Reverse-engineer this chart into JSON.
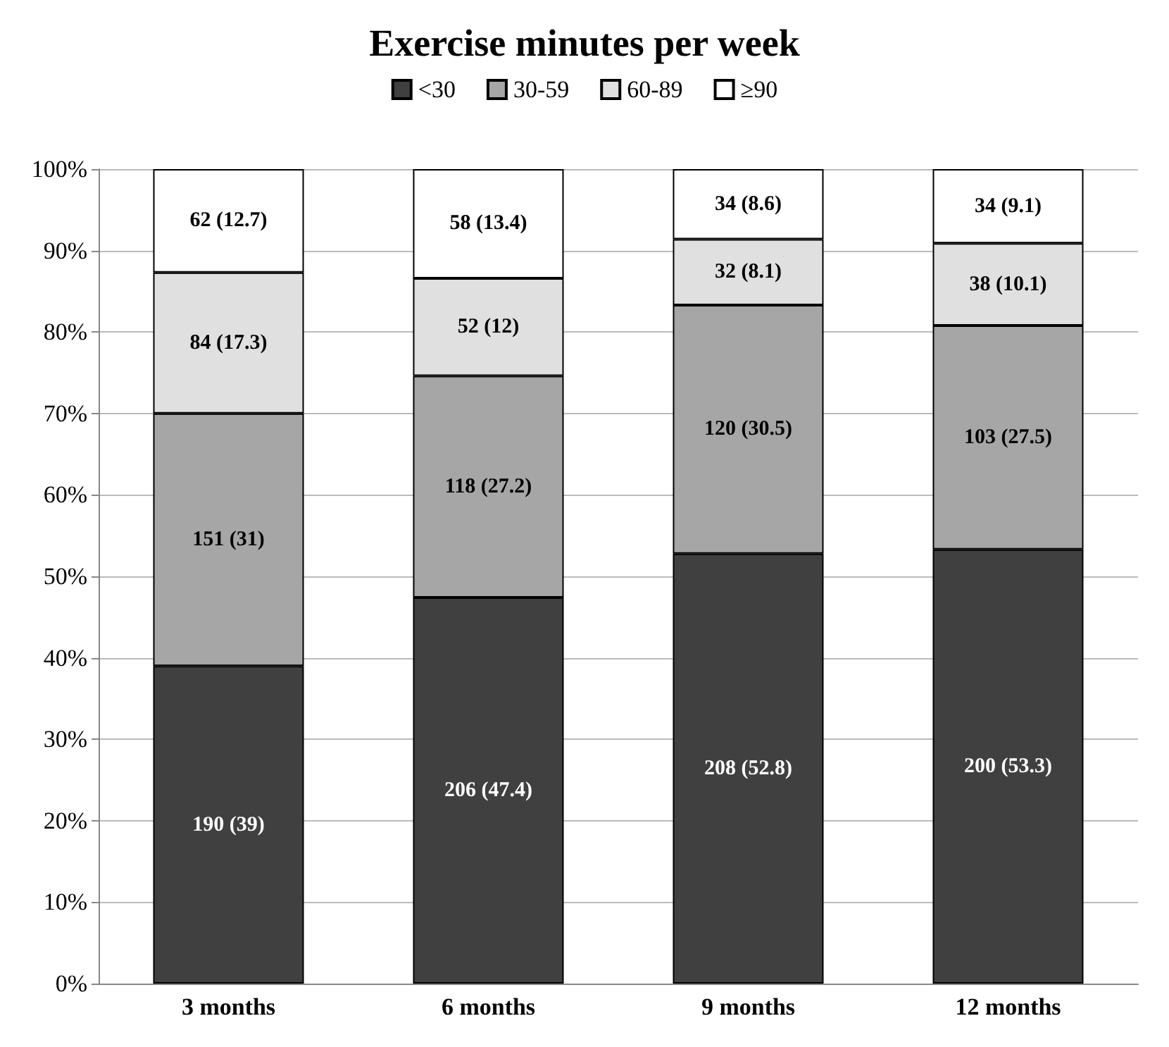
{
  "chart_data": {
    "type": "bar",
    "title": "Exercise minutes per week",
    "stacked": true,
    "categories": [
      "3 months",
      "6 months",
      "9 months",
      "12 months"
    ],
    "series": [
      {
        "name": "<30",
        "color": "#404040",
        "values": [
          39,
          47.4,
          52.8,
          53.3
        ],
        "value_labels": [
          "190 (39)",
          "206 (47.4)",
          "208 (52.8)",
          "200 (53.3)"
        ]
      },
      {
        "name": "30-59",
        "color": "#a6a6a6",
        "values": [
          31,
          27.2,
          30.5,
          27.5
        ],
        "value_labels": [
          "151 (31)",
          "118 (27.2)",
          "120 (30.5)",
          "103 (27.5)"
        ]
      },
      {
        "name": "60-89",
        "color": "#e0e0e0",
        "values": [
          17.3,
          12,
          8.1,
          10.1
        ],
        "value_labels": [
          "84 (17.3)",
          "52 (12)",
          "32 (8.1)",
          "38 (10.1)"
        ]
      },
      {
        "name": "≥90",
        "color": "#ffffff",
        "values": [
          12.7,
          13.4,
          8.6,
          9.1
        ],
        "value_labels": [
          "62 (12.7)",
          "58 (13.4)",
          "34 (8.6)",
          "34 (9.1)"
        ]
      }
    ],
    "ylim": [
      0,
      100
    ],
    "yticks": [
      {
        "value": 0,
        "label": "0%"
      },
      {
        "value": 10,
        "label": "10%"
      },
      {
        "value": 20,
        "label": "20%"
      },
      {
        "value": 30,
        "label": "30%"
      },
      {
        "value": 40,
        "label": "40%"
      },
      {
        "value": 50,
        "label": "50%"
      },
      {
        "value": 60,
        "label": "60%"
      },
      {
        "value": 70,
        "label": "70%"
      },
      {
        "value": 80,
        "label": "80%"
      },
      {
        "value": 90,
        "label": "90%"
      },
      {
        "value": 100,
        "label": "100%"
      }
    ],
    "grid": "y",
    "legend": "top"
  }
}
